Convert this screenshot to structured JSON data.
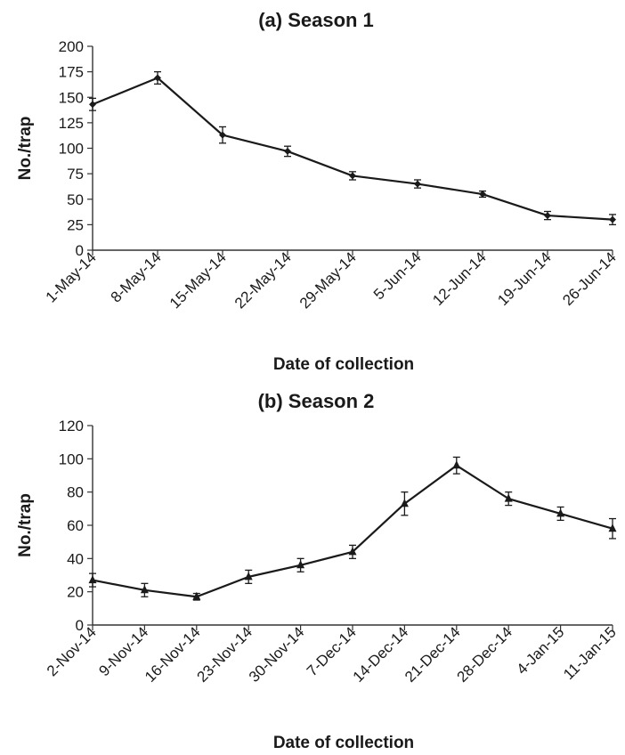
{
  "chart_data": [
    {
      "type": "line",
      "title": "(a) Season 1",
      "xlabel": "Date of collection",
      "ylabel": "No./trap",
      "ylim": [
        0,
        200
      ],
      "yticks": [
        0,
        25,
        50,
        75,
        100,
        125,
        150,
        175,
        200
      ],
      "categories": [
        "1-May-14",
        "8-May-14",
        "15-May-14",
        "22-May-14",
        "29-May-14",
        "5-Jun-14",
        "12-Jun-14",
        "19-Jun-14",
        "26-Jun-14"
      ],
      "series": [
        {
          "marker": "diamond",
          "values": [
            143,
            169,
            113,
            97,
            73,
            65,
            55,
            34,
            30
          ],
          "errors": [
            6,
            6,
            8,
            5,
            4,
            4,
            3,
            4,
            5
          ]
        }
      ],
      "grid": false,
      "color": "#1a1a1a"
    },
    {
      "type": "line",
      "title": "(b) Season 2",
      "xlabel": "Date of collection",
      "ylabel": "No./trap",
      "ylim": [
        0,
        120
      ],
      "yticks": [
        0,
        20,
        40,
        60,
        80,
        100,
        120
      ],
      "categories": [
        "2-Nov-14",
        "9-Nov-14",
        "16-Nov-14",
        "23-Nov-14",
        "30-Nov-14",
        "7-Dec-14",
        "14-Dec-14",
        "21-Dec-14",
        "28-Dec-14",
        "4-Jan-15",
        "11-Jan-15"
      ],
      "series": [
        {
          "marker": "triangle",
          "values": [
            27,
            21,
            17,
            29,
            36,
            44,
            73,
            96,
            76,
            67,
            58
          ],
          "errors": [
            4,
            4,
            2,
            4,
            4,
            4,
            7,
            5,
            4,
            4,
            6
          ]
        }
      ],
      "grid": false,
      "color": "#1a1a1a"
    }
  ]
}
